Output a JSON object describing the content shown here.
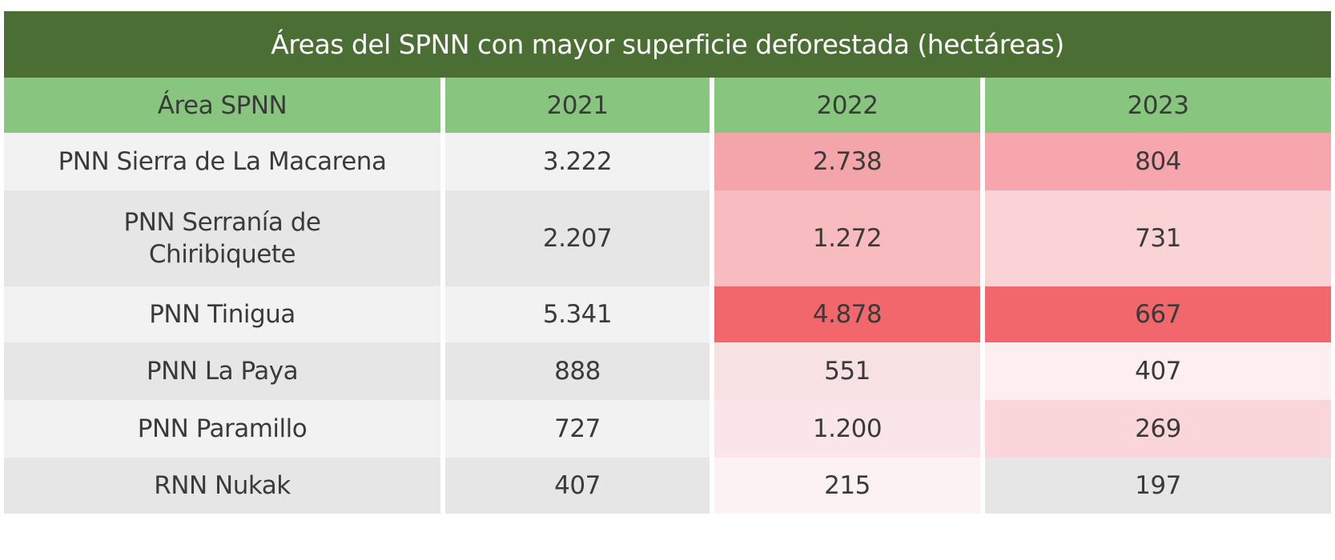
{
  "chart_data": {
    "type": "table",
    "title": "Áreas del SPNN con mayor superficie deforestada (hectáreas)",
    "columns": [
      "Área SPNN",
      "2021",
      "2022",
      "2023"
    ],
    "rows": [
      {
        "area": "PNN Sierra de La Macarena",
        "values": [
          "3.222",
          "2.738",
          "804"
        ]
      },
      {
        "area": "PNN Serranía de Chiribiquete",
        "values": [
          "2.207",
          "1.272",
          "731"
        ]
      },
      {
        "area": "PNN Tinigua",
        "values": [
          "5.341",
          "4.878",
          "667"
        ]
      },
      {
        "area": "PNN La Paya",
        "values": [
          "888",
          "551",
          "407"
        ]
      },
      {
        "area": "PNN Paramillo",
        "values": [
          "727",
          "1.200",
          "269"
        ]
      },
      {
        "area": "RNN Nukak",
        "values": [
          "407",
          "215",
          "197"
        ]
      }
    ]
  },
  "colors": {
    "title_bg": "#4a6e34",
    "header_bg": "#88c67f",
    "row_light": "#f2f2f2",
    "row_dark": "#e6e6e6",
    "heat_2022": [
      "#f4a5a9",
      "#f8bcc0",
      "#f2676c",
      "#f7e1e3",
      "#fae6ea",
      "#fcf1f3"
    ],
    "heat_2023": [
      "#f6a6ac",
      "#f9d3d6",
      "#f2676c",
      "#fdeef0",
      "#fad5d9",
      "#e6e6e6"
    ]
  }
}
